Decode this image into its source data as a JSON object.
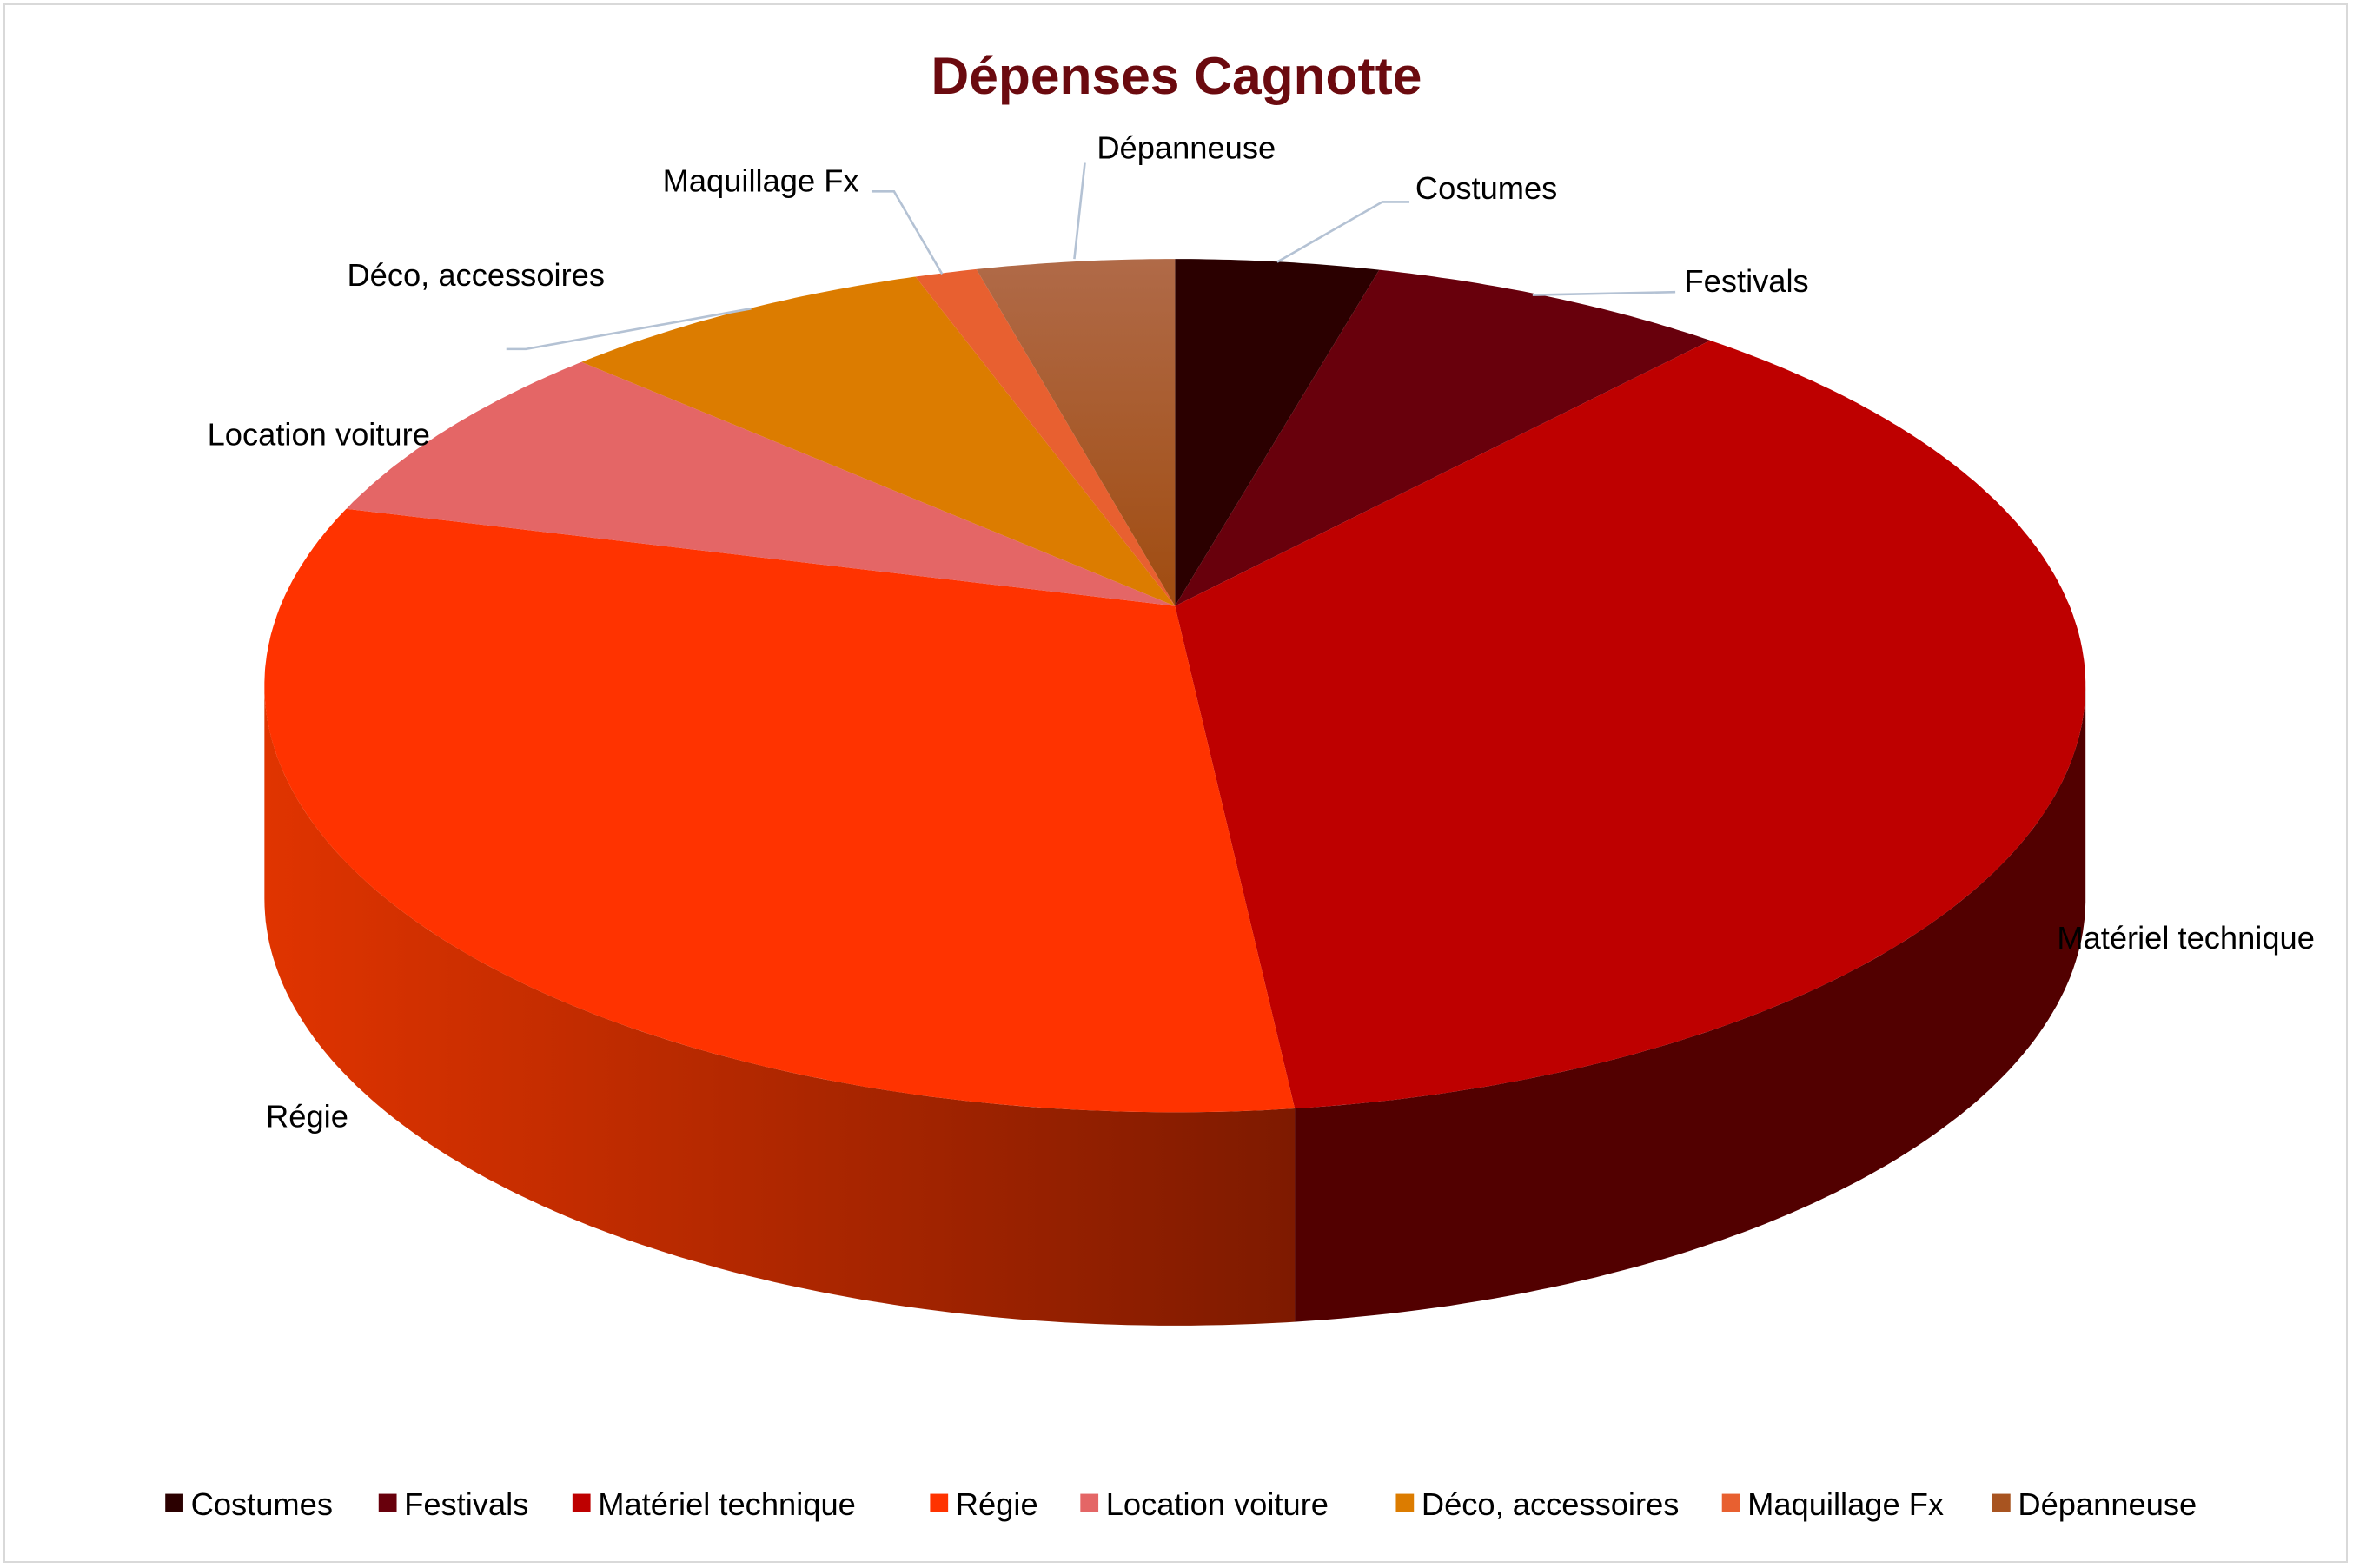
{
  "chart_data": {
    "type": "pie",
    "style": "3d",
    "title": "Dépenses Cagnotte",
    "legend_position": "bottom",
    "unit": "percent (estimated)",
    "slices": [
      {
        "label": "Costumes",
        "value": 3.6,
        "color": "#2b0000",
        "side_color": "#1e0000"
      },
      {
        "label": "Festivals",
        "value": 6.4,
        "color": "#68000c",
        "side_color": "#4a0008"
      },
      {
        "label": "Matériel technique",
        "value": 37.9,
        "color": "#be0000",
        "side_color": "#520000"
      },
      {
        "label": "Régie",
        "value": 33.9,
        "color": "#ff3300",
        "side_color": "#c02800"
      },
      {
        "label": "Location voiture",
        "value": 6.9,
        "color": "#e46666",
        "side_color": "#b04848"
      },
      {
        "label": "Déco, accessoires",
        "value": 6.7,
        "color": "#dc7c00",
        "side_color": "#a85e00"
      },
      {
        "label": "Maquillage Fx",
        "value": 1.1,
        "color": "#e86030",
        "side_color": "#b04820"
      },
      {
        "label": "Dépanneuse",
        "value": 3.5,
        "color": "#a85420",
        "side_color": "#7a3c14"
      }
    ]
  }
}
